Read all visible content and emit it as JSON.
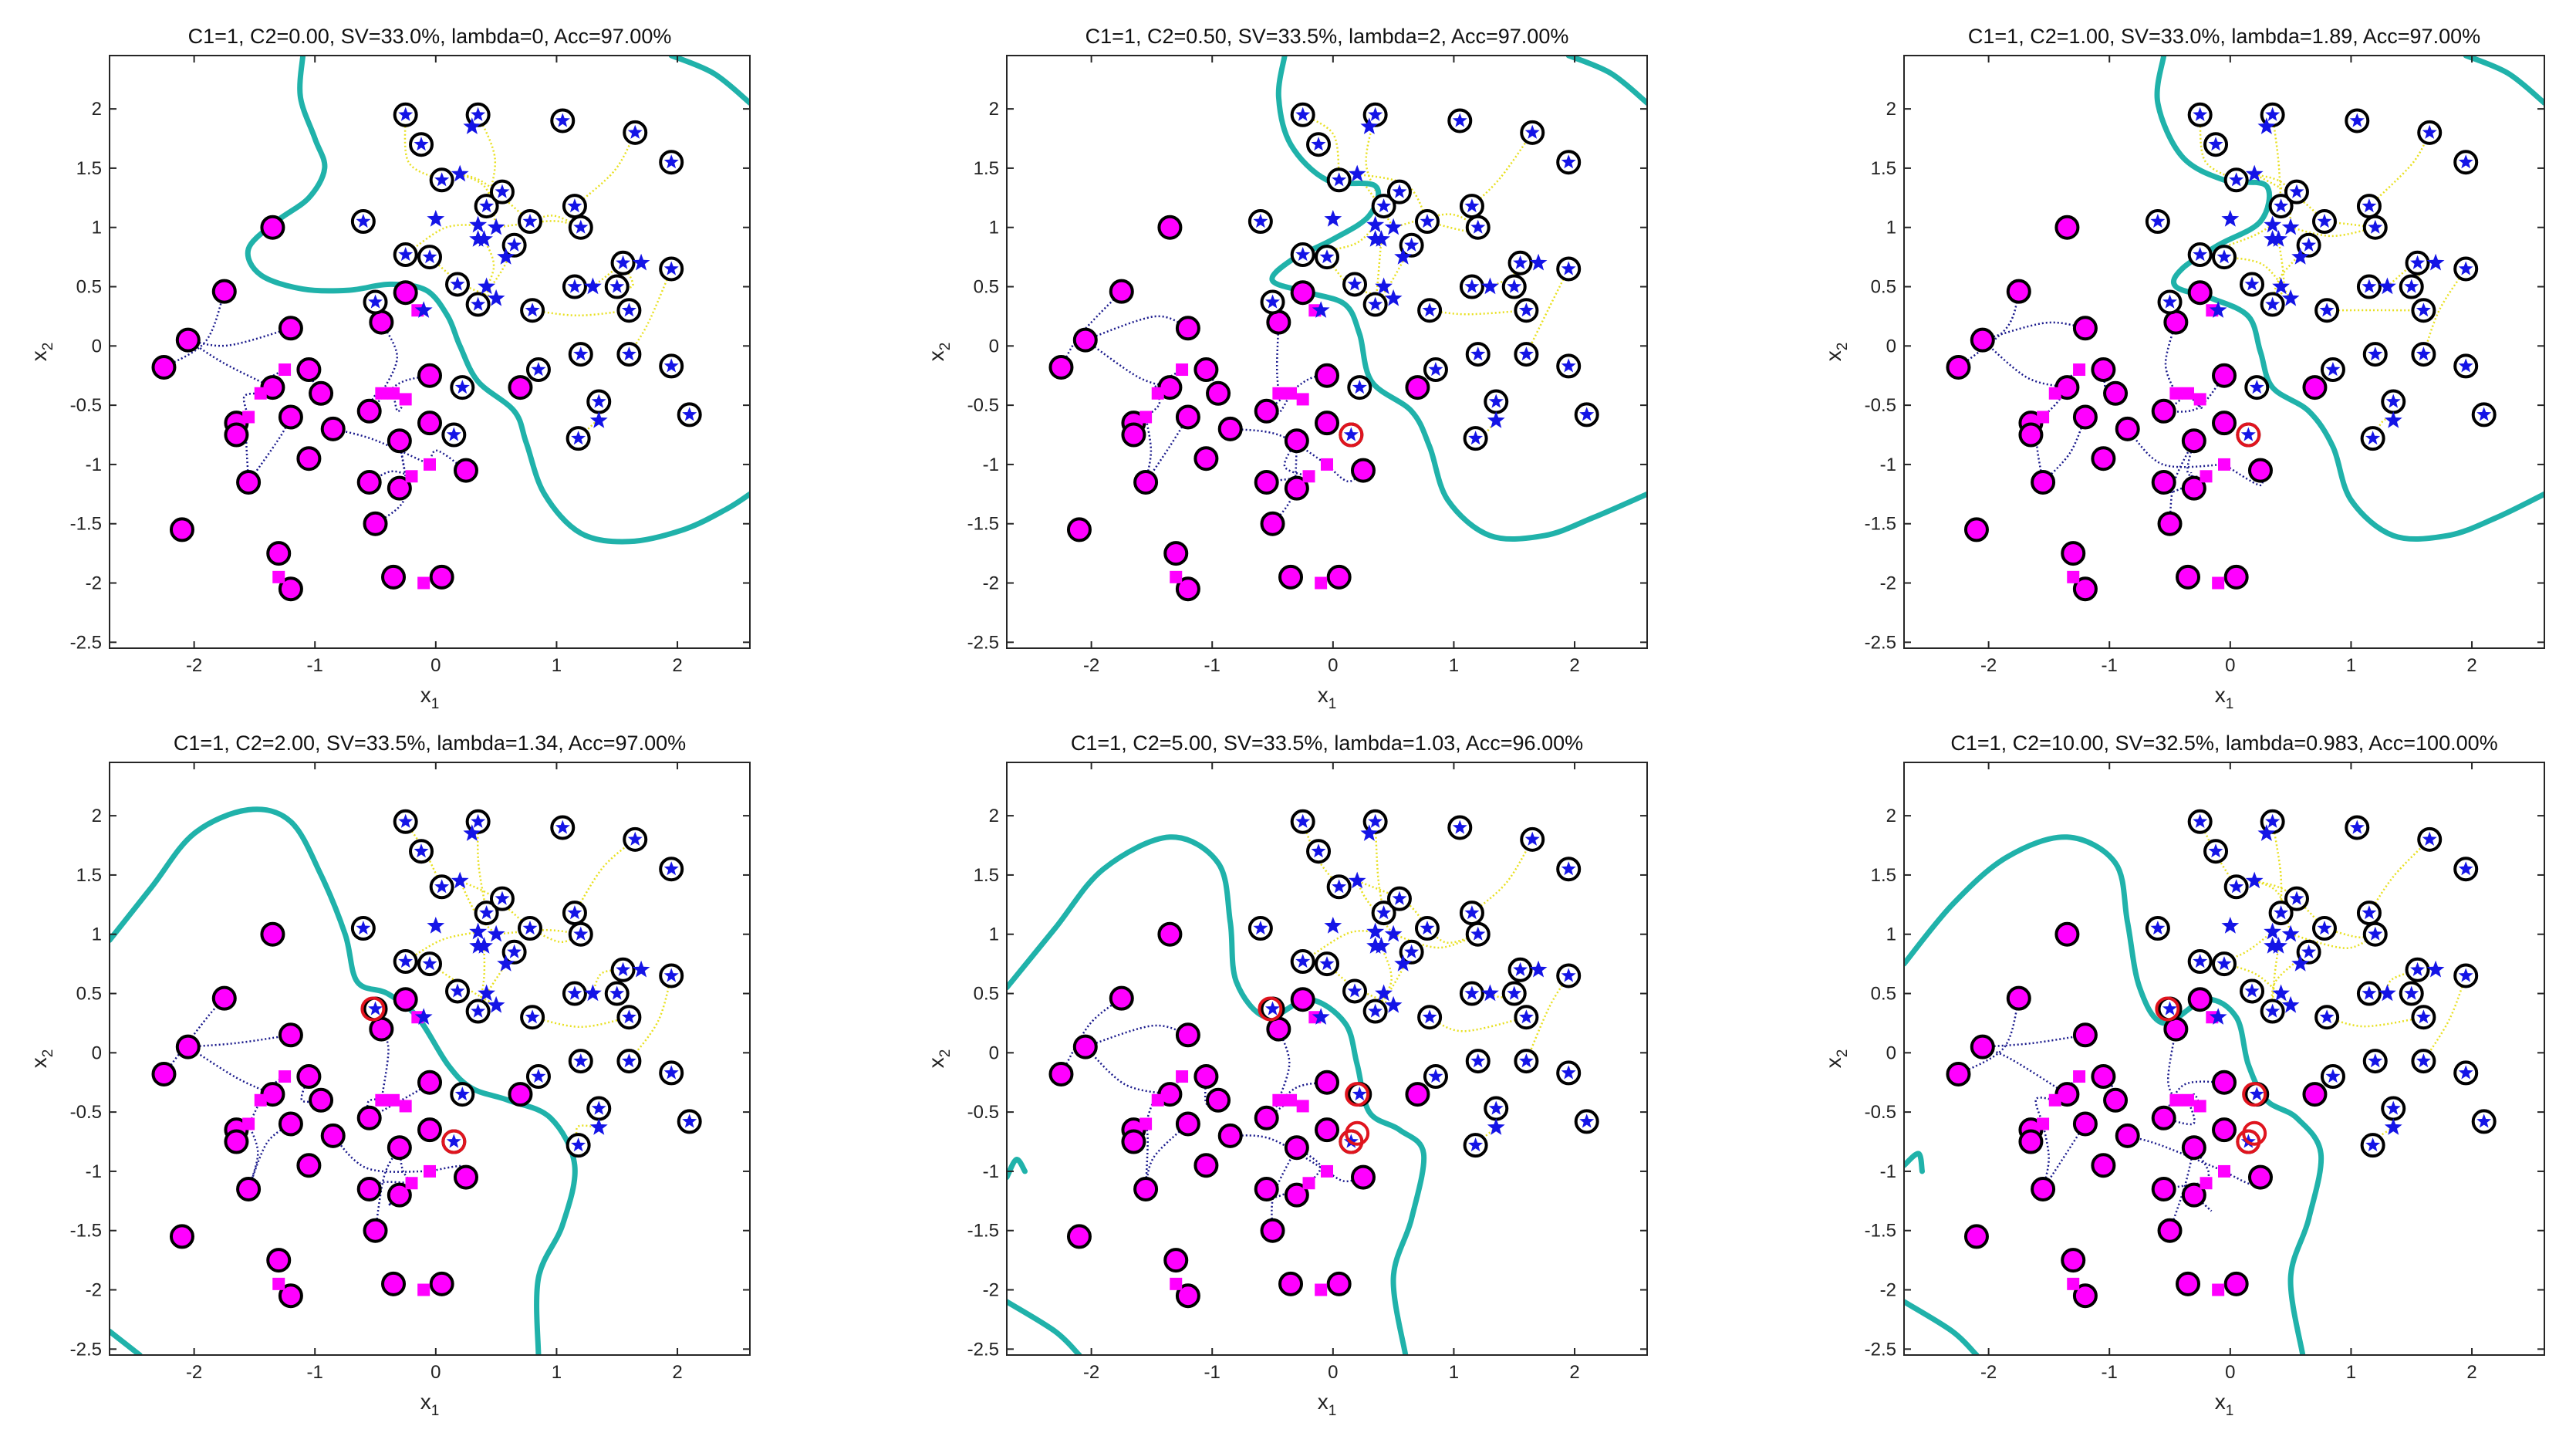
{
  "figure": {
    "layout": "2 rows x 3 columns of scatter plots",
    "legend": "none"
  },
  "chart_data": [
    {
      "type": "scatter",
      "title": "C1=1, C2=0.00, SV=33.0%,  lambda=0, Acc=97.00%",
      "xlabel": "x",
      "xlabel_sub": "1",
      "ylabel": "x",
      "ylabel_sub": "2",
      "xlim": [
        -2.7,
        2.6
      ],
      "ylim": [
        -2.55,
        2.45
      ],
      "xticks": [
        -2,
        -1,
        0,
        1,
        2
      ],
      "yticks": [
        2,
        1.5,
        1,
        0.5,
        0,
        -0.5,
        -1,
        -1.5,
        -2,
        -2.5
      ],
      "boundary": [
        [
          [
            -1.1,
            2.45
          ],
          [
            -1.12,
            2.1
          ],
          [
            -1.0,
            1.75
          ],
          [
            -0.92,
            1.5
          ],
          [
            -1.05,
            1.25
          ],
          [
            -1.32,
            1.05
          ],
          [
            -1.55,
            0.82
          ],
          [
            -1.45,
            0.6
          ],
          [
            -1.1,
            0.48
          ],
          [
            -0.72,
            0.47
          ],
          [
            -0.38,
            0.52
          ],
          [
            -0.08,
            0.47
          ],
          [
            0.1,
            0.25
          ],
          [
            0.2,
            0.0
          ],
          [
            0.35,
            -0.3
          ],
          [
            0.65,
            -0.55
          ],
          [
            0.75,
            -0.82
          ],
          [
            0.9,
            -1.25
          ],
          [
            1.2,
            -1.58
          ],
          [
            1.6,
            -1.65
          ],
          [
            2.05,
            -1.55
          ],
          [
            2.4,
            -1.38
          ],
          [
            2.6,
            -1.25
          ]
        ],
        [
          [
            1.95,
            2.45
          ],
          [
            2.3,
            2.3
          ],
          [
            2.6,
            2.05
          ]
        ]
      ]
    },
    {
      "type": "scatter",
      "title": "C1=1, C2=0.50, SV=33.5%,  lambda=2, Acc=97.00%",
      "xlabel": "x",
      "xlabel_sub": "1",
      "ylabel": "x",
      "ylabel_sub": "2",
      "xlim": [
        -2.7,
        2.6
      ],
      "ylim": [
        -2.55,
        2.45
      ],
      "xticks": [
        -2,
        -1,
        0,
        1,
        2
      ],
      "yticks": [
        2,
        1.5,
        1,
        0.5,
        0,
        -0.5,
        -1,
        -1.5,
        -2,
        -2.5
      ],
      "boundary": [
        [
          [
            -0.4,
            2.45
          ],
          [
            -0.45,
            2.1
          ],
          [
            -0.35,
            1.7
          ],
          [
            -0.05,
            1.4
          ],
          [
            0.35,
            1.35
          ],
          [
            0.3,
            1.1
          ],
          [
            0.0,
            0.9
          ],
          [
            -0.35,
            0.72
          ],
          [
            -0.5,
            0.55
          ],
          [
            -0.2,
            0.45
          ],
          [
            0.1,
            0.35
          ],
          [
            0.22,
            0.1
          ],
          [
            0.32,
            -0.3
          ],
          [
            0.65,
            -0.55
          ],
          [
            0.8,
            -0.85
          ],
          [
            0.95,
            -1.3
          ],
          [
            1.3,
            -1.6
          ],
          [
            1.75,
            -1.6
          ],
          [
            2.15,
            -1.45
          ],
          [
            2.6,
            -1.25
          ]
        ],
        [
          [
            1.95,
            2.45
          ],
          [
            2.3,
            2.3
          ],
          [
            2.6,
            2.05
          ]
        ]
      ]
    },
    {
      "type": "scatter",
      "title": "C1=1, C2=1.00, SV=33.0%,  lambda=1.89, Acc=97.00%",
      "xlabel": "x",
      "xlabel_sub": "1",
      "ylabel": "x",
      "ylabel_sub": "2",
      "xlim": [
        -2.7,
        2.6
      ],
      "ylim": [
        -2.55,
        2.45
      ],
      "xticks": [
        -2,
        -1,
        0,
        1,
        2
      ],
      "yticks": [
        2,
        1.5,
        1,
        0.5,
        0,
        -0.5,
        -1,
        -1.5,
        -2,
        -2.5
      ],
      "boundary": [
        [
          [
            -0.55,
            2.45
          ],
          [
            -0.6,
            2.05
          ],
          [
            -0.4,
            1.6
          ],
          [
            -0.05,
            1.4
          ],
          [
            0.3,
            1.35
          ],
          [
            0.25,
            1.05
          ],
          [
            -0.1,
            0.85
          ],
          [
            -0.4,
            0.65
          ],
          [
            -0.45,
            0.5
          ],
          [
            -0.15,
            0.4
          ],
          [
            0.15,
            0.25
          ],
          [
            0.25,
            -0.05
          ],
          [
            0.35,
            -0.35
          ],
          [
            0.65,
            -0.55
          ],
          [
            0.85,
            -0.85
          ],
          [
            1.0,
            -1.3
          ],
          [
            1.35,
            -1.6
          ],
          [
            1.8,
            -1.6
          ],
          [
            2.2,
            -1.45
          ],
          [
            2.6,
            -1.25
          ]
        ],
        [
          [
            1.95,
            2.45
          ],
          [
            2.3,
            2.3
          ],
          [
            2.6,
            2.05
          ]
        ]
      ]
    },
    {
      "type": "scatter",
      "title": "C1=1, C2=2.00, SV=33.5%,  lambda=1.34, Acc=97.00%",
      "xlabel": "x",
      "xlabel_sub": "1",
      "ylabel": "x",
      "ylabel_sub": "2",
      "xlim": [
        -2.7,
        2.6
      ],
      "ylim": [
        -2.55,
        2.45
      ],
      "xticks": [
        -2,
        -1,
        0,
        1,
        2
      ],
      "yticks": [
        2,
        1.5,
        1,
        0.5,
        0,
        -0.5,
        -1,
        -1.5,
        -2,
        -2.5
      ],
      "boundary": [
        [
          [
            -2.7,
            0.95
          ],
          [
            -2.35,
            1.4
          ],
          [
            -2.0,
            1.85
          ],
          [
            -1.55,
            2.05
          ],
          [
            -1.2,
            1.95
          ],
          [
            -0.95,
            1.5
          ],
          [
            -0.75,
            1.0
          ],
          [
            -0.65,
            0.6
          ],
          [
            -0.4,
            0.5
          ],
          [
            -0.15,
            0.3
          ],
          [
            0.1,
            -0.1
          ],
          [
            0.3,
            -0.3
          ],
          [
            0.6,
            -0.4
          ],
          [
            0.95,
            -0.55
          ],
          [
            1.15,
            -0.95
          ],
          [
            1.05,
            -1.45
          ],
          [
            0.85,
            -1.9
          ],
          [
            0.85,
            -2.55
          ]
        ],
        [
          [
            -2.7,
            -2.35
          ],
          [
            -2.45,
            -2.55
          ]
        ]
      ]
    },
    {
      "type": "scatter",
      "title": "C1=1, C2=5.00, SV=33.5%, lambda=1.03, Acc=96.00%",
      "xlabel": "x",
      "xlabel_sub": "1",
      "ylabel": "x",
      "ylabel_sub": "2",
      "xlim": [
        -2.7,
        2.6
      ],
      "ylim": [
        -2.55,
        2.45
      ],
      "xticks": [
        -2,
        -1,
        0,
        1,
        2
      ],
      "yticks": [
        2,
        1.5,
        1,
        0.5,
        0,
        -0.5,
        -1,
        -1.5,
        -2,
        -2.5
      ],
      "boundary": [
        [
          [
            -2.7,
            0.55
          ],
          [
            -2.3,
            1.05
          ],
          [
            -1.9,
            1.55
          ],
          [
            -1.35,
            1.82
          ],
          [
            -0.95,
            1.6
          ],
          [
            -0.85,
            1.1
          ],
          [
            -0.8,
            0.6
          ],
          [
            -0.55,
            0.3
          ],
          [
            -0.2,
            0.45
          ],
          [
            0.1,
            0.25
          ],
          [
            0.2,
            -0.1
          ],
          [
            0.3,
            -0.5
          ],
          [
            0.55,
            -0.65
          ],
          [
            0.75,
            -0.85
          ],
          [
            0.65,
            -1.4
          ],
          [
            0.5,
            -1.9
          ],
          [
            0.6,
            -2.55
          ]
        ],
        [
          [
            -2.7,
            -1.05
          ],
          [
            -2.62,
            -0.9
          ],
          [
            -2.55,
            -1.0
          ]
        ],
        [
          [
            -2.7,
            -2.1
          ],
          [
            -2.3,
            -2.35
          ],
          [
            -2.1,
            -2.55
          ]
        ]
      ]
    },
    {
      "type": "scatter",
      "title": "C1=1, C2=10.00, SV=32.5%,  lambda=0.983, Acc=100.00%",
      "xlabel": "x",
      "xlabel_sub": "1",
      "ylabel": "x",
      "ylabel_sub": "2",
      "xlim": [
        -2.7,
        2.6
      ],
      "ylim": [
        -2.55,
        2.45
      ],
      "xticks": [
        -2,
        -1,
        0,
        1,
        2
      ],
      "yticks": [
        2,
        1.5,
        1,
        0.5,
        0,
        -0.5,
        -1,
        -1.5,
        -2,
        -2.5
      ],
      "boundary": [
        [
          [
            -2.7,
            0.75
          ],
          [
            -2.3,
            1.25
          ],
          [
            -1.85,
            1.65
          ],
          [
            -1.35,
            1.82
          ],
          [
            -0.95,
            1.6
          ],
          [
            -0.85,
            1.1
          ],
          [
            -0.75,
            0.55
          ],
          [
            -0.55,
            0.25
          ],
          [
            -0.2,
            0.45
          ],
          [
            0.05,
            0.3
          ],
          [
            0.15,
            -0.1
          ],
          [
            0.3,
            -0.4
          ],
          [
            0.55,
            -0.55
          ],
          [
            0.75,
            -0.85
          ],
          [
            0.65,
            -1.4
          ],
          [
            0.5,
            -1.9
          ],
          [
            0.6,
            -2.55
          ]
        ],
        [
          [
            -2.7,
            -0.95
          ],
          [
            -2.58,
            -0.85
          ],
          [
            -2.55,
            -1.0
          ]
        ],
        [
          [
            -2.7,
            -2.1
          ],
          [
            -2.3,
            -2.35
          ],
          [
            -2.1,
            -2.55
          ]
        ]
      ]
    }
  ],
  "points": {
    "class_pos": [
      [
        -0.25,
        1.95
      ],
      [
        0.35,
        1.95
      ],
      [
        -0.12,
        1.7
      ],
      [
        0.05,
        1.4
      ],
      [
        1.05,
        1.9
      ],
      [
        1.65,
        1.8
      ],
      [
        1.95,
        1.55
      ],
      [
        -0.6,
        1.05
      ],
      [
        -0.25,
        0.77
      ],
      [
        -0.05,
        0.75
      ],
      [
        0.42,
        1.18
      ],
      [
        0.55,
        1.3
      ],
      [
        0.78,
        1.05
      ],
      [
        0.65,
        0.85
      ],
      [
        1.15,
        1.18
      ],
      [
        1.2,
        1.0
      ],
      [
        1.55,
        0.7
      ],
      [
        1.95,
        0.65
      ],
      [
        1.15,
        0.5
      ],
      [
        1.5,
        0.5
      ],
      [
        1.6,
        0.3
      ],
      [
        0.18,
        0.52
      ],
      [
        0.35,
        0.35
      ],
      [
        0.8,
        0.3
      ],
      [
        -0.5,
        0.37
      ],
      [
        1.2,
        -0.07
      ],
      [
        1.6,
        -0.07
      ],
      [
        1.95,
        -0.17
      ],
      [
        0.85,
        -0.2
      ],
      [
        1.35,
        -0.47
      ],
      [
        1.18,
        -0.78
      ],
      [
        2.1,
        -0.58
      ],
      [
        0.22,
        -0.35
      ],
      [
        0.15,
        -0.75
      ],
      [
        0.0,
        1.07
      ],
      [
        0.35,
        1.02
      ],
      [
        0.5,
        1.0
      ],
      [
        0.4,
        0.9
      ],
      [
        0.58,
        0.75
      ],
      [
        0.2,
        1.45
      ],
      [
        0.35,
        0.9
      ],
      [
        0.42,
        0.5
      ],
      [
        0.5,
        0.4
      ],
      [
        1.3,
        0.5
      ],
      [
        1.7,
        0.7
      ],
      [
        1.35,
        -0.63
      ],
      [
        0.3,
        1.85
      ],
      [
        -0.1,
        0.3
      ]
    ],
    "class_neg": [
      [
        -2.25,
        -0.18
      ],
      [
        -2.05,
        0.05
      ],
      [
        -1.75,
        0.46
      ],
      [
        -1.35,
        1.0
      ],
      [
        -1.65,
        -0.65
      ],
      [
        -1.65,
        -0.75
      ],
      [
        -1.55,
        -1.15
      ],
      [
        -1.2,
        0.15
      ],
      [
        -1.35,
        -0.35
      ],
      [
        -1.2,
        -0.6
      ],
      [
        -1.05,
        -0.2
      ],
      [
        -0.95,
        -0.4
      ],
      [
        -1.05,
        -0.95
      ],
      [
        -0.85,
        -0.7
      ],
      [
        -0.55,
        -0.55
      ],
      [
        -0.3,
        -0.8
      ],
      [
        -0.05,
        -0.65
      ],
      [
        -0.25,
        0.45
      ],
      [
        -0.55,
        -1.15
      ],
      [
        -0.5,
        -1.5
      ],
      [
        -0.3,
        -1.2
      ],
      [
        -0.35,
        -1.95
      ],
      [
        0.05,
        -1.95
      ],
      [
        0.25,
        -1.05
      ],
      [
        -2.1,
        -1.55
      ],
      [
        -1.3,
        -1.75
      ],
      [
        -1.2,
        -2.05
      ],
      [
        -0.05,
        -0.25
      ],
      [
        0.7,
        -0.35
      ],
      [
        -0.45,
        0.2
      ],
      [
        -0.45,
        -0.4
      ],
      [
        -0.35,
        -0.4
      ],
      [
        -1.55,
        -0.6
      ],
      [
        -1.25,
        -0.2
      ],
      [
        -0.25,
        -0.45
      ],
      [
        -0.05,
        -1.0
      ],
      [
        -0.2,
        -1.1
      ],
      [
        -1.3,
        -1.95
      ],
      [
        -0.1,
        -2.0
      ],
      [
        -1.45,
        -0.4
      ],
      [
        -0.15,
        0.3
      ]
    ],
    "sv_pos_index": [
      0,
      1,
      2,
      3,
      4,
      5,
      6,
      7,
      8,
      9,
      10,
      11,
      12,
      13,
      14,
      15,
      16,
      17,
      18,
      19,
      20,
      21,
      22,
      23,
      24,
      25,
      26,
      27,
      28,
      29,
      30,
      31,
      32,
      33
    ],
    "sv_neg_index": [
      0,
      1,
      2,
      3,
      4,
      5,
      6,
      7,
      8,
      9,
      10,
      11,
      12,
      13,
      14,
      15,
      16,
      17,
      18,
      19,
      20,
      21,
      22,
      23,
      24,
      25,
      26,
      27,
      28,
      29
    ],
    "misclassified": [
      [],
      [
        [
          0.15,
          -0.75
        ]
      ],
      [
        [
          0.15,
          -0.75
        ]
      ],
      [
        [
          -0.52,
          0.37
        ],
        [
          0.15,
          -0.75
        ]
      ],
      [
        [
          -0.52,
          0.37
        ],
        [
          0.2,
          -0.35
        ],
        [
          0.15,
          -0.75
        ],
        [
          0.2,
          -0.68
        ]
      ],
      [
        [
          -0.52,
          0.37
        ],
        [
          0.2,
          -0.35
        ],
        [
          0.15,
          -0.75
        ],
        [
          0.2,
          -0.68
        ]
      ]
    ]
  },
  "colors": {
    "boundary": "#20b2aa",
    "pos_marker": "#1414e6",
    "neg_marker": "#ff00ff",
    "sv_ring": "#000000",
    "mis_ring": "#e0141e",
    "pos_link": "#e8e020",
    "neg_link": "#1a1a8c",
    "axes": "#262626"
  }
}
